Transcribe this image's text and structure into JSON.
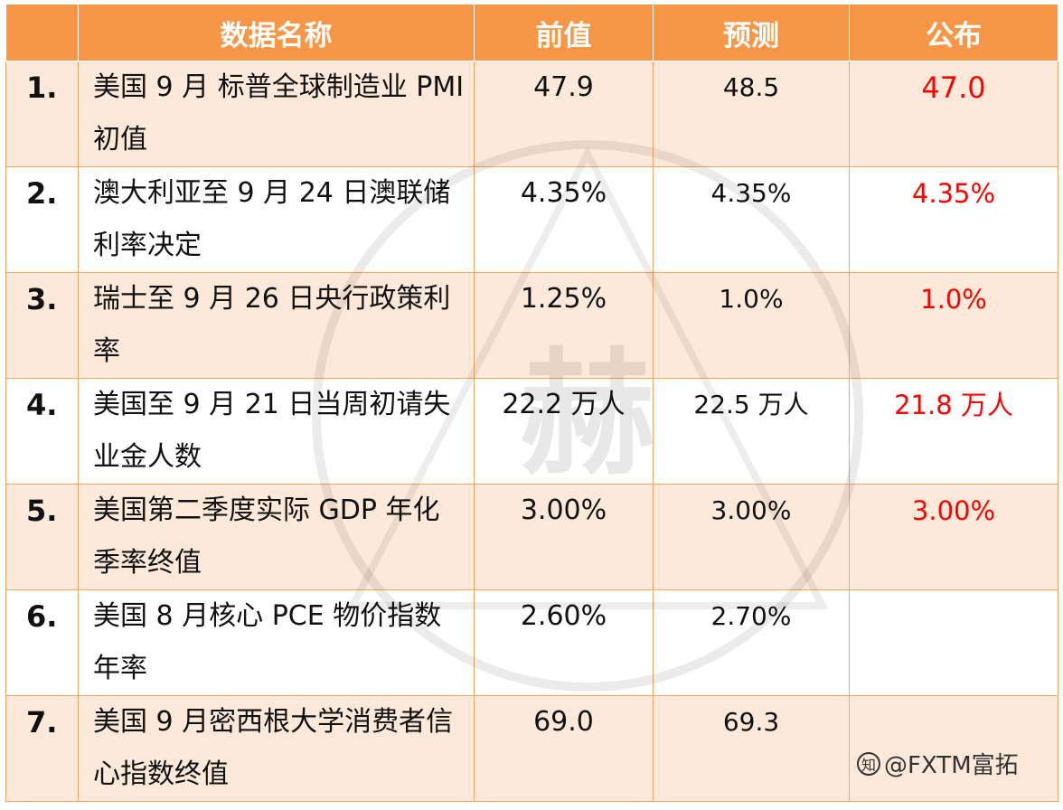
{
  "header": {
    "name": "数据名称",
    "previous": "前值",
    "forecast": "预测",
    "published": "公布"
  },
  "rows": [
    {
      "num": "1.",
      "name": "美国 9 月 标普全球制造业 PMI 初值",
      "previous": "47.9",
      "forecast": "48.5",
      "published": "47.0"
    },
    {
      "num": "2.",
      "name": "澳大利亚至 9 月 24 日澳联储利率决定",
      "previous": "4.35%",
      "forecast": "4.35%",
      "published": "4.35%"
    },
    {
      "num": "3.",
      "name": "瑞士至 9 月 26 日央行政策利率",
      "previous": "1.25%",
      "forecast": "1.0%",
      "published": "1.0%"
    },
    {
      "num": "4.",
      "name": "美国至 9 月 21 日当周初请失业金人数",
      "previous": "22.2 万人",
      "forecast": "22.5 万人",
      "published": "21.8 万人"
    },
    {
      "num": "5.",
      "name": "美国第二季度实际 GDP 年化季率终值",
      "previous": "3.00%",
      "forecast": "3.00%",
      "published": "3.00%"
    },
    {
      "num": "6.",
      "name": "美国 8 月核心 PCE 物价指数年率",
      "previous": "2.60%",
      "forecast": "2.70%",
      "published": ""
    },
    {
      "num": "7.",
      "name": "美国 9 月密西根大学消费者信心指数终值",
      "previous": "69.0",
      "forecast": "69.3",
      "published": ""
    }
  ],
  "watermark_glyph": "赫",
  "credit": {
    "icon": "zhihu-icon",
    "text": "@FXTM富拓"
  },
  "colors": {
    "header_bg": "#f79646",
    "odd_row_bg": "#fde9d9",
    "published_text": "#ff0000"
  }
}
